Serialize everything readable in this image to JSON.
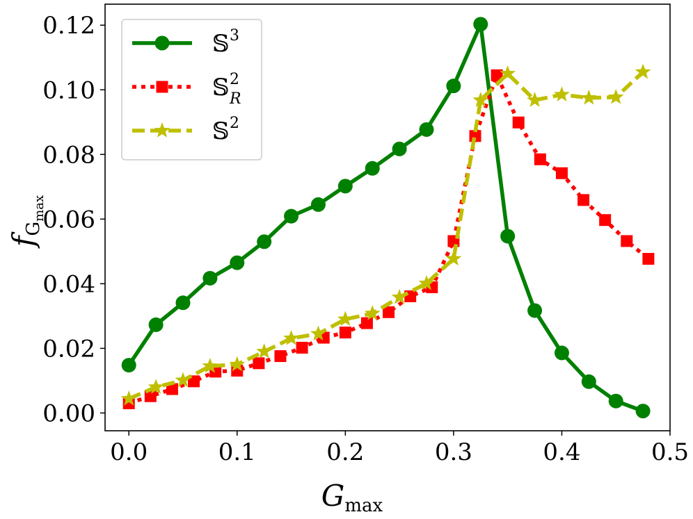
{
  "chart_data": {
    "type": "line",
    "title": "",
    "xlabel": "G",
    "xlabel_sub": "max",
    "ylabel": "f",
    "ylabel_sub": "G",
    "ylabel_subsub": "max",
    "xlim": [
      -0.022,
      0.5
    ],
    "ylim": [
      -0.0055,
      0.1265
    ],
    "x_ticks": [
      0.0,
      0.1,
      0.2,
      0.3,
      0.4,
      0.5
    ],
    "x_tick_labels": [
      "0.0",
      "0.1",
      "0.2",
      "0.3",
      "0.4",
      "0.5"
    ],
    "y_ticks": [
      0.0,
      0.02,
      0.04,
      0.06,
      0.08,
      0.1,
      0.12
    ],
    "y_tick_labels": [
      "0.00",
      "0.02",
      "0.04",
      "0.06",
      "0.08",
      "0.10",
      "0.12"
    ],
    "grid": false,
    "legend_position": "top-left",
    "series": [
      {
        "name": "S3",
        "legend_base": "𝕊",
        "legend_sup": "3",
        "legend_sub": "",
        "color": "#008000",
        "line_style": "solid",
        "marker": "circle",
        "x": [
          0.0,
          0.025,
          0.05,
          0.075,
          0.1,
          0.125,
          0.15,
          0.175,
          0.2,
          0.225,
          0.25,
          0.275,
          0.3,
          0.325,
          0.35,
          0.375,
          0.4,
          0.425,
          0.45,
          0.475
        ],
        "y": [
          0.0148,
          0.0273,
          0.0341,
          0.0417,
          0.0465,
          0.053,
          0.0609,
          0.0645,
          0.0702,
          0.0757,
          0.0817,
          0.0877,
          0.1012,
          0.1203,
          0.0547,
          0.0317,
          0.0186,
          0.0097,
          0.0037,
          0.0006
        ]
      },
      {
        "name": "S2_R",
        "legend_base": "𝕊",
        "legend_sup": "2",
        "legend_sub": "R",
        "color": "#ff0000",
        "line_style": "dotted",
        "marker": "square",
        "x": [
          0.0,
          0.02,
          0.04,
          0.06,
          0.08,
          0.1,
          0.12,
          0.14,
          0.16,
          0.18,
          0.2,
          0.22,
          0.24,
          0.26,
          0.28,
          0.3,
          0.32,
          0.34,
          0.36,
          0.38,
          0.4,
          0.42,
          0.44,
          0.46,
          0.48
        ],
        "y": [
          0.003,
          0.0052,
          0.0074,
          0.0098,
          0.0128,
          0.0131,
          0.0154,
          0.0176,
          0.0202,
          0.0233,
          0.0249,
          0.0278,
          0.0312,
          0.0361,
          0.0389,
          0.0532,
          0.0857,
          0.1045,
          0.0899,
          0.0785,
          0.0742,
          0.0659,
          0.0597,
          0.0532,
          0.0477
        ]
      },
      {
        "name": "S2",
        "legend_base": "𝕊",
        "legend_sup": "2",
        "legend_sub": "",
        "color": "#bfbf00",
        "line_style": "dashed",
        "marker": "star",
        "x": [
          0.0,
          0.025,
          0.05,
          0.075,
          0.1,
          0.125,
          0.15,
          0.175,
          0.2,
          0.225,
          0.25,
          0.275,
          0.3,
          0.325,
          0.35,
          0.375,
          0.4,
          0.425,
          0.45,
          0.475
        ],
        "y": [
          0.0044,
          0.008,
          0.0101,
          0.0145,
          0.015,
          0.019,
          0.0231,
          0.0245,
          0.029,
          0.0308,
          0.0358,
          0.0401,
          0.0477,
          0.0968,
          0.105,
          0.0968,
          0.0985,
          0.0975,
          0.0977,
          0.1055
        ]
      }
    ]
  }
}
